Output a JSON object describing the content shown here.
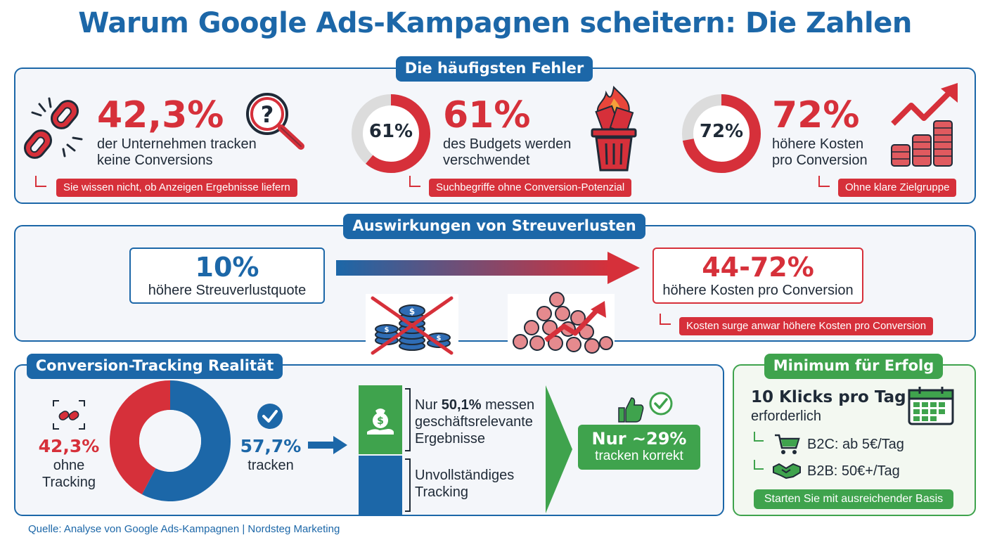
{
  "title": "Warum Google Ads-Kampagnen scheitern: Die Zahlen",
  "section1": {
    "heading": "Die häufigsten Fehler",
    "items": [
      {
        "number": "42,3%",
        "line1": "der Unternehmen tracken",
        "line2": "keine Conversions",
        "tag": "Sie wissen nicht, ob Anzeigen Ergebnisse liefern"
      },
      {
        "number": "61%",
        "ring_label": "61%",
        "ring_value": 61,
        "line1": "des Budgets werden",
        "line2": "verschwendet",
        "tag": "Suchbegriffe ohne Conversion-Potenzial"
      },
      {
        "number": "72%",
        "ring_label": "72%",
        "ring_value": 72,
        "line1": "höhere Kosten",
        "line2": "pro Conversion",
        "tag": "Ohne klare Zielgruppe"
      }
    ]
  },
  "section2": {
    "heading": "Auswirkungen von Streuverlusten",
    "left_value": "10%",
    "left_label": "höhere Streuverlustquote",
    "right_value": "44-72%",
    "right_label": "höhere Kosten pro Conversion",
    "tag": "Kosten surge anwar höhere Kosten pro Conversion"
  },
  "section3": {
    "heading": "Conversion-Tracking Realität",
    "donut_no_tracking": 42.3,
    "donut_tracking": 57.7,
    "left_value": "42,3%",
    "left_l1": "ohne",
    "left_l2": "Tracking",
    "right_value": "57,7%",
    "right_l1": "tracken",
    "bar_top_pre": "Nur ",
    "bar_top_bold": "50,1%",
    "bar_top_post": " messen",
    "bar_top_l2": "geschäftsrelevante",
    "bar_top_l3": "Ergebnisse",
    "bar_bottom_l1": "Unvollständiges",
    "bar_bottom_l2": "Tracking",
    "result_value": "Nur ~29%",
    "result_label": "tracken korrekt"
  },
  "section4": {
    "heading": "Minimum für Erfolg",
    "big": "10 Klicks pro Tag",
    "sub": "erforderlich",
    "b2c": "B2C: ab 5€/Tag",
    "b2b": "B2B: 50€+/Tag",
    "cta": "Starten Sie mit ausreichender Basis"
  },
  "footer": "Quelle: Analyse von Google Ads-Kampagnen | Nordsteg Marketing",
  "colors": {
    "blue": "#1c67a8",
    "red": "#d6303a",
    "green": "#3fa34d"
  }
}
